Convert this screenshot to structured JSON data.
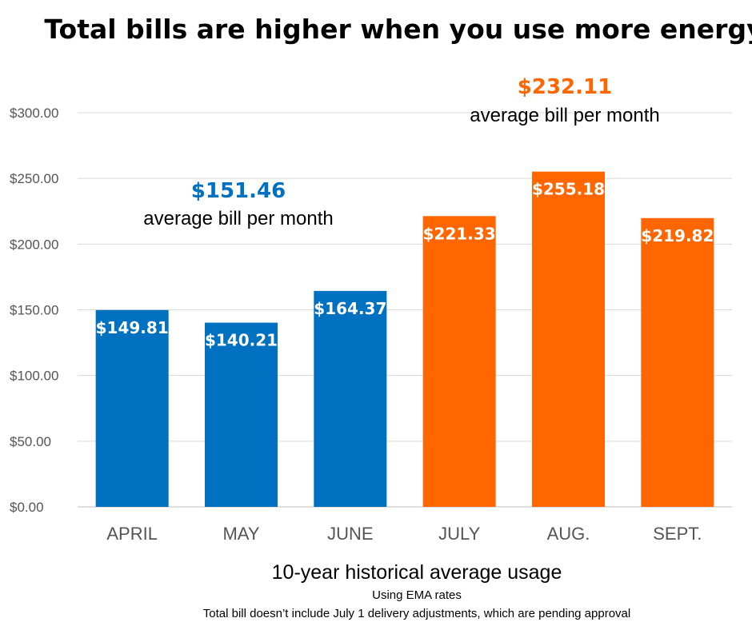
{
  "chart_data": {
    "type": "bar",
    "title": "Total bills are higher when you use more energy",
    "xlabel": "10-year historical average usage",
    "notes": [
      "Using EMA rates",
      "Total bill doesn’t include July 1 delivery adjustments, which are pending approval"
    ],
    "categories": [
      "APRIL",
      "MAY",
      "JUNE",
      "JULY",
      "AUG.",
      "SEPT."
    ],
    "values": [
      149.81,
      140.21,
      164.37,
      221.33,
      255.18,
      219.82
    ],
    "data_labels": [
      "$149.81",
      "$140.21",
      "$164.37",
      "$221.33",
      "$255.18",
      "$219.82"
    ],
    "bar_colors": [
      "#0070c0",
      "#0070c0",
      "#0070c0",
      "#ff6600",
      "#ff6600",
      "#ff6600"
    ],
    "ylim": [
      0,
      300
    ],
    "yticks": [
      0,
      50,
      100,
      150,
      200,
      250,
      300
    ],
    "ytick_labels": [
      "$0.00",
      "$50.00",
      "$100.00",
      "$150.00",
      "$200.00",
      "$250.00",
      "$300.00"
    ],
    "grid": true,
    "annotations": [
      {
        "value": "$151.46",
        "text": "average bill per month",
        "color": "#0070c0",
        "group": "spring"
      },
      {
        "value": "$232.11",
        "text": "average bill per month",
        "color": "#ff6600",
        "group": "summer"
      }
    ]
  }
}
